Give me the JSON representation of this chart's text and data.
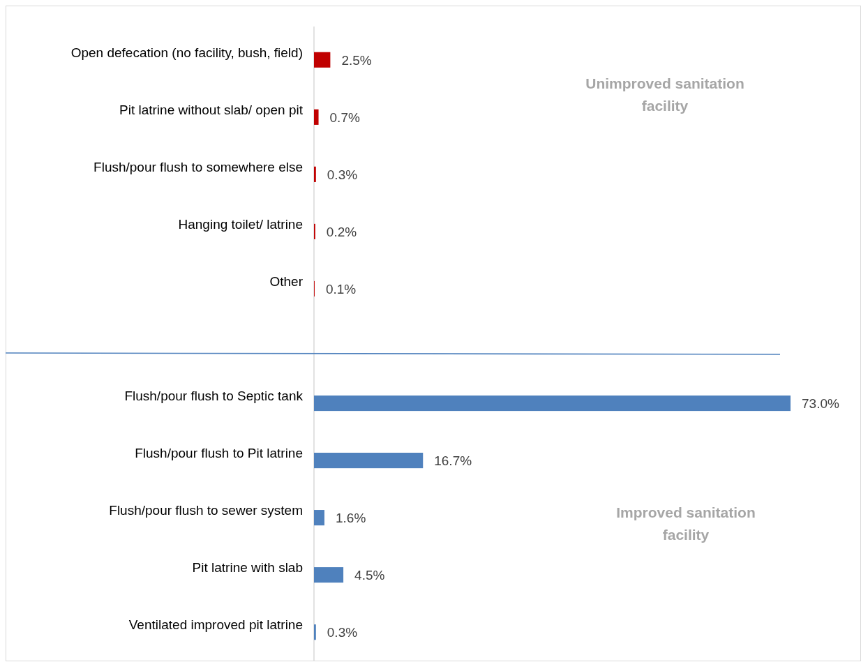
{
  "chart_data": {
    "type": "bar",
    "orientation": "horizontal",
    "categories": [
      "Open defecation (no facility, bush, field)",
      "Pit latrine without slab/ open pit",
      "Flush/pour flush to somewhere else",
      "Hanging toilet/ latrine",
      "Other",
      null,
      "Flush/pour flush to Septic tank",
      "Flush/pour flush to Pit latrine",
      "Flush/pour flush to sewer system",
      "Pit latrine with slab",
      "Ventilated improved pit latrine"
    ],
    "values": [
      2.5,
      0.7,
      0.3,
      0.2,
      0.1,
      null,
      73.0,
      16.7,
      1.6,
      4.5,
      0.3
    ],
    "colors": [
      "#c00000",
      "#c00000",
      "#c00000",
      "#c00000",
      "#c00000",
      null,
      "#4f81bd",
      "#4f81bd",
      "#4f81bd",
      "#4f81bd",
      "#4f81bd"
    ],
    "value_labels": [
      "2.5%",
      "0.7%",
      "0.3%",
      "0.2%",
      "0.1%",
      null,
      "73.0%",
      "16.7%",
      "1.6%",
      "4.5%",
      "0.3%"
    ],
    "annotations": [
      "Unimproved sanitation facility",
      "Improved sanitation facility"
    ]
  }
}
